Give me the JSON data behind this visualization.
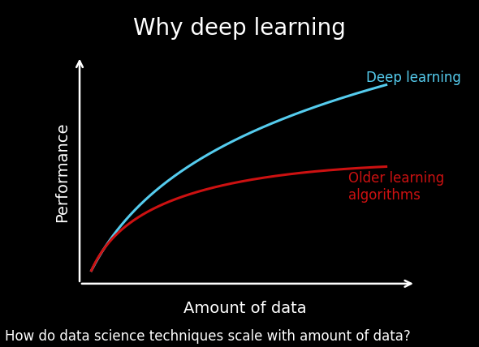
{
  "title": "Why deep learning",
  "xlabel": "Amount of data",
  "ylabel": "Performance",
  "footnote": "How do data science techniques scale with amount of data?",
  "deep_learning_label": "Deep learning",
  "older_label": "Older learning\nalgorithms",
  "background_color": "#000000",
  "axis_color": "#ffffff",
  "deep_color": "#55ccee",
  "older_color": "#cc1111",
  "title_color": "#ffffff",
  "label_color": "#ffffff",
  "title_fontsize": 20,
  "axis_label_fontsize": 14,
  "footnote_fontsize": 12,
  "curve_label_fontsize": 12,
  "line_width": 2.2
}
